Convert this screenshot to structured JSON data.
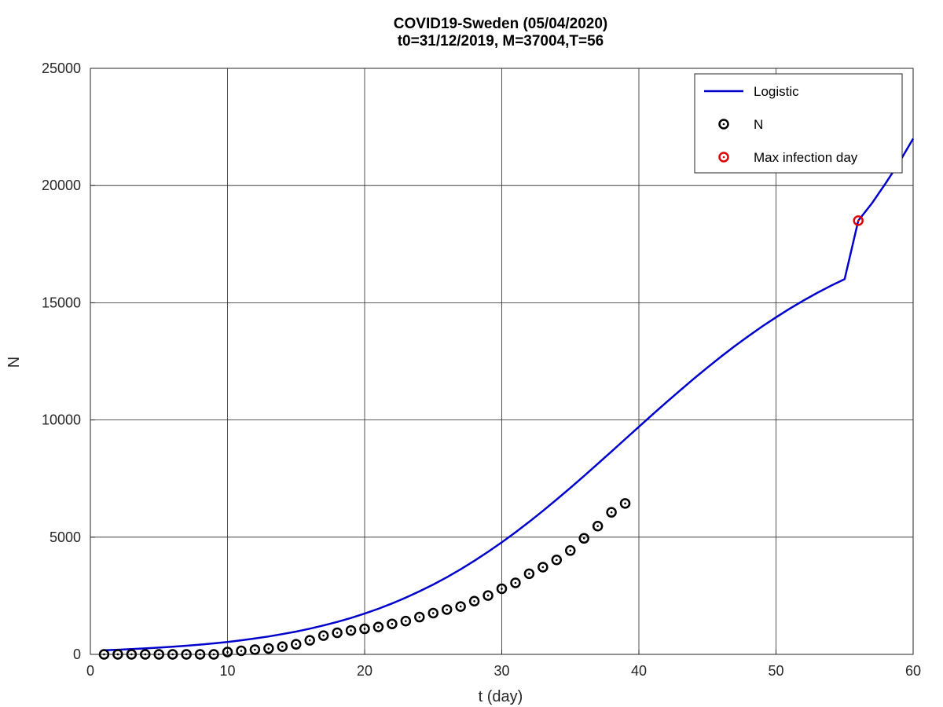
{
  "chart_data": {
    "type": "line",
    "title": "COVID19-Sweden (05/04/2020)",
    "subtitle": "t0=31/12/2019, M=37004,T=56",
    "xlabel": "t (day)",
    "ylabel": "N",
    "xlim": [
      0,
      60
    ],
    "ylim": [
      0,
      25000
    ],
    "xticks": [
      0,
      10,
      20,
      30,
      40,
      50,
      60
    ],
    "yticks": [
      0,
      5000,
      10000,
      15000,
      20000,
      25000
    ],
    "grid": true,
    "legend_position": "top-right",
    "series": [
      {
        "name": "Logistic",
        "kind": "line",
        "color": "#0000cc",
        "x": [
          1,
          2,
          3,
          4,
          5,
          6,
          7,
          8,
          9,
          10,
          11,
          12,
          13,
          14,
          15,
          16,
          17,
          18,
          19,
          20,
          21,
          22,
          23,
          24,
          25,
          26,
          27,
          28,
          29,
          30,
          31,
          32,
          33,
          34,
          35,
          36,
          37,
          38,
          39,
          40,
          41,
          42,
          43,
          44,
          45,
          46,
          47,
          48,
          49,
          50,
          51,
          52,
          53,
          54,
          55,
          56,
          57,
          58,
          59,
          60
        ],
        "y": [
          175,
          198,
          224,
          254,
          287,
          325,
          368,
          416,
          470,
          531,
          600,
          678,
          765,
          863,
          973,
          1095,
          1232,
          1384,
          1553,
          1740,
          1945,
          2171,
          2418,
          2687,
          2978,
          3292,
          3630,
          3990,
          4374,
          4780,
          5207,
          5655,
          6121,
          6604,
          7101,
          7611,
          8130,
          8654,
          9182,
          9709,
          10233,
          10750,
          11258,
          11755,
          12237,
          12703,
          13152,
          13582,
          13991,
          14380,
          14748,
          15094,
          15419,
          15723,
          16006,
          18502,
          19250,
          20100,
          21000,
          22000
        ]
      },
      {
        "name": "N",
        "kind": "scatter",
        "color": "#000000",
        "x": [
          1,
          2,
          3,
          4,
          5,
          6,
          7,
          8,
          9,
          10,
          11,
          12,
          13,
          14,
          15,
          16,
          17,
          18,
          19,
          20,
          21,
          22,
          23,
          24,
          25,
          26,
          27,
          28,
          29,
          30,
          31,
          32,
          33,
          34,
          35,
          36,
          37,
          38,
          39
        ],
        "y": [
          1,
          1,
          1,
          1,
          1,
          1,
          1,
          1,
          1,
          100,
          150,
          200,
          250,
          330,
          430,
          600,
          800,
          920,
          1020,
          1090,
          1170,
          1300,
          1420,
          1590,
          1760,
          1910,
          2040,
          2270,
          2510,
          2800,
          3050,
          3440,
          3720,
          4030,
          4430,
          4950,
          5470,
          6060,
          6440
        ]
      },
      {
        "name": "Max infection day",
        "kind": "scatter",
        "color": "#e00000",
        "x": [
          56
        ],
        "y": [
          18502
        ]
      }
    ]
  }
}
